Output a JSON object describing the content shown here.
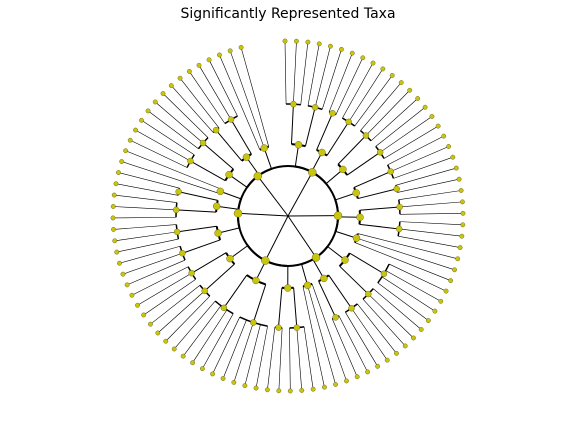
{
  "title": "Significantly Represented Taxa",
  "colors": {
    "node": "#c8c40f",
    "node_edge": "#555500",
    "branch": "#000000",
    "background": "#ffffff"
  },
  "tree": {
    "type": "circular-cladogram",
    "root": {
      "children": [
        {
          "children": [
            {
              "children": [
                {
                  "children": [
                    {},
                    {},
                    {}
                  ]
                },
                {
                  "children": [
                    {},
                    {},
                    {}
                  ]
                }
              ]
            },
            {
              "children": [
                {
                  "children": [
                    {},
                    {}
                  ]
                },
                {
                  "children": [
                    {},
                    {},
                    {}
                  ]
                }
              ]
            },
            {
              "children": [
                {
                  "children": [
                    {},
                    {},
                    {}
                  ]
                },
                {
                  "children": [
                    {},
                    {},
                    {}
                  ]
                }
              ]
            }
          ]
        },
        {
          "children": [
            {
              "children": [
                {
                  "children": [
                    {},
                    {},
                    {}
                  ]
                },
                {
                  "children": [
                    {},
                    {}
                  ]
                }
              ]
            },
            {
              "children": [
                {
                  "children": [
                    {},
                    {},
                    {}
                  ]
                },
                {
                  "children": [
                    {},
                    {},
                    {}
                  ]
                }
              ]
            },
            {
              "children": [
                {},
                {},
                {}
              ]
            }
          ]
        },
        {
          "children": [
            {
              "children": [
                {
                  "children": [
                    {},
                    {},
                    {},
                    {}
                  ]
                },
                {
                  "children": [
                    {},
                    {},
                    {}
                  ]
                }
              ]
            },
            {
              "children": [
                {
                  "children": [
                    {},
                    {},
                    {}
                  ]
                },
                {
                  "children": [
                    {},
                    {}
                  ]
                }
              ]
            },
            {
              "children": [
                {},
                {},
                {}
              ]
            }
          ]
        },
        {
          "children": [
            {
              "children": [
                {
                  "children": [
                    {},
                    {},
                    {}
                  ]
                },
                {
                  "children": [
                    {},
                    {}
                  ]
                }
              ]
            },
            {
              "children": [
                {
                  "children": [
                    {},
                    {},
                    {},
                    {},
                    {}
                  ]
                },
                {
                  "children": [
                    {},
                    {},
                    {},
                    {}
                  ]
                }
              ]
            },
            {
              "children": [
                {
                  "children": [
                    {},
                    {},
                    {}
                  ]
                },
                {
                  "children": [
                    {},
                    {},
                    {}
                  ]
                }
              ]
            }
          ]
        },
        {
          "children": [
            {
              "children": [
                {
                  "children": [
                    {},
                    {},
                    {}
                  ]
                },
                {
                  "children": [
                    {},
                    {},
                    {}
                  ]
                }
              ]
            },
            {
              "children": [
                {
                  "children": [
                    {},
                    {},
                    {}
                  ]
                },
                {
                  "children": [
                    {},
                    {}
                  ]
                }
              ]
            },
            {
              "children": [
                {},
                {}
              ]
            }
          ]
        },
        {
          "children": [
            {
              "children": [
                {
                  "children": [
                    {},
                    {},
                    {}
                  ]
                },
                {
                  "children": [
                    {},
                    {},
                    {}
                  ]
                }
              ]
            },
            {
              "children": [
                {
                  "children": [
                    {},
                    {}
                  ]
                },
                {
                  "children": [
                    {},
                    {},
                    {}
                  ]
                }
              ]
            },
            {
              "children": [
                {},
                {},
                {}
              ]
            }
          ]
        }
      ]
    }
  }
}
